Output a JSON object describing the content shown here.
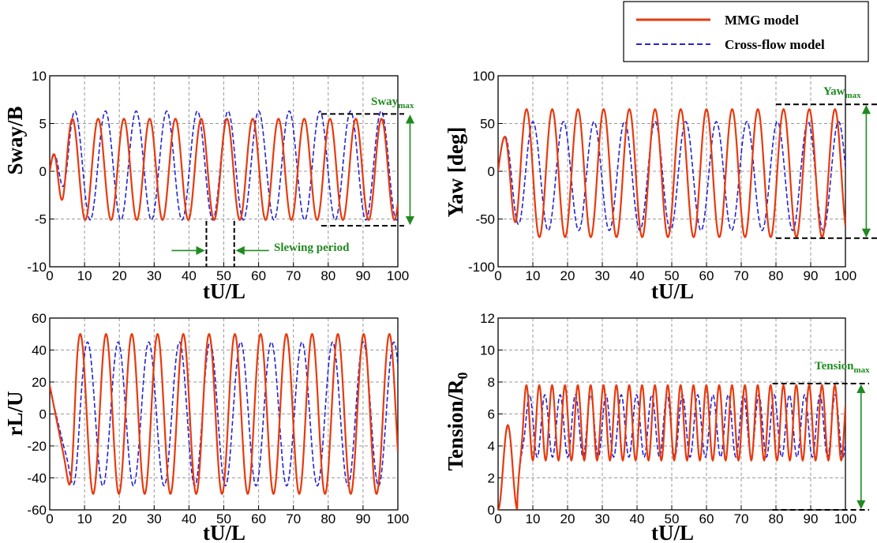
{
  "legend": {
    "entries": [
      {
        "name": "MMG model",
        "color": "#e83a0e",
        "style": "solid"
      },
      {
        "name": "Cross-flow model",
        "color": "#2424d8",
        "style": "dashed"
      }
    ]
  },
  "chart_data": [
    {
      "type": "line",
      "id": "sway",
      "xlabel": "tU/L",
      "ylabel": "Sway/B",
      "xlim": [
        0,
        100
      ],
      "ylim": [
        -10,
        10
      ],
      "xticks": [
        0,
        10,
        20,
        30,
        40,
        50,
        60,
        70,
        80,
        90,
        100
      ],
      "yticks": [
        -10,
        -5,
        0,
        5,
        10
      ],
      "series": [
        {
          "name": "MMG model",
          "amplitude_max": 5.5,
          "amplitude_min": -5.1,
          "period": 7.4
        },
        {
          "name": "Cross-flow model",
          "amplitude_max": 6.3,
          "amplitude_min": -5.1,
          "period": 8.8
        }
      ],
      "annotations": [
        {
          "type": "range",
          "label": "Sway",
          "sub": "max",
          "y1": 6.0,
          "y2": -5.7
        },
        {
          "type": "period",
          "label": "Slewing period",
          "x1": 45,
          "x2": 53
        }
      ]
    },
    {
      "type": "line",
      "id": "yaw",
      "xlabel": "tU/L",
      "ylabel": "Yaw [deg]",
      "xlim": [
        0,
        100
      ],
      "ylim": [
        -100,
        100
      ],
      "xticks": [
        0,
        10,
        20,
        30,
        40,
        50,
        60,
        70,
        80,
        90,
        100
      ],
      "yticks": [
        -100,
        -50,
        0,
        50,
        100
      ],
      "series": [
        {
          "name": "MMG model",
          "amplitude_max": 65,
          "amplitude_min": -69,
          "period": 7.4
        },
        {
          "name": "Cross-flow model",
          "amplitude_max": 52,
          "amplitude_min": -62,
          "period": 8.8
        }
      ],
      "annotations": [
        {
          "type": "range",
          "label": "Yaw",
          "sub": "max",
          "y1": 70,
          "y2": -70
        }
      ]
    },
    {
      "type": "line",
      "id": "rl",
      "xlabel": "tU/L",
      "ylabel": "rL/U",
      "xlim": [
        0,
        100
      ],
      "ylim": [
        -60,
        60
      ],
      "xticks": [
        0,
        10,
        20,
        30,
        40,
        50,
        60,
        70,
        80,
        90,
        100
      ],
      "yticks": [
        -60,
        -40,
        -20,
        0,
        20,
        40,
        60
      ],
      "series": [
        {
          "name": "MMG model",
          "amplitude_max": 50,
          "amplitude_min": -50,
          "period": 7.4
        },
        {
          "name": "Cross-flow model",
          "amplitude_max": 45,
          "amplitude_min": -45,
          "period": 8.8
        }
      ],
      "annotations": []
    },
    {
      "type": "line",
      "id": "tension",
      "xlabel": "tU/L",
      "ylabel": "Tension/R",
      "ylabel_sub": "0",
      "xlim": [
        0,
        100
      ],
      "ylim": [
        0,
        12
      ],
      "xticks": [
        0,
        10,
        20,
        30,
        40,
        50,
        60,
        70,
        80,
        90,
        100
      ],
      "yticks": [
        0,
        2,
        4,
        6,
        8,
        10,
        12
      ],
      "series": [
        {
          "name": "MMG model",
          "amplitude_max": 7.8,
          "amplitude_min": 3.1,
          "period": 3.7
        },
        {
          "name": "Cross-flow model",
          "amplitude_max": 7.2,
          "amplitude_min": 3.3,
          "period": 4.4
        }
      ],
      "annotations": [
        {
          "type": "range",
          "label": "Tension",
          "sub": "max",
          "y1": 7.9,
          "y2": 0.0
        }
      ]
    }
  ]
}
